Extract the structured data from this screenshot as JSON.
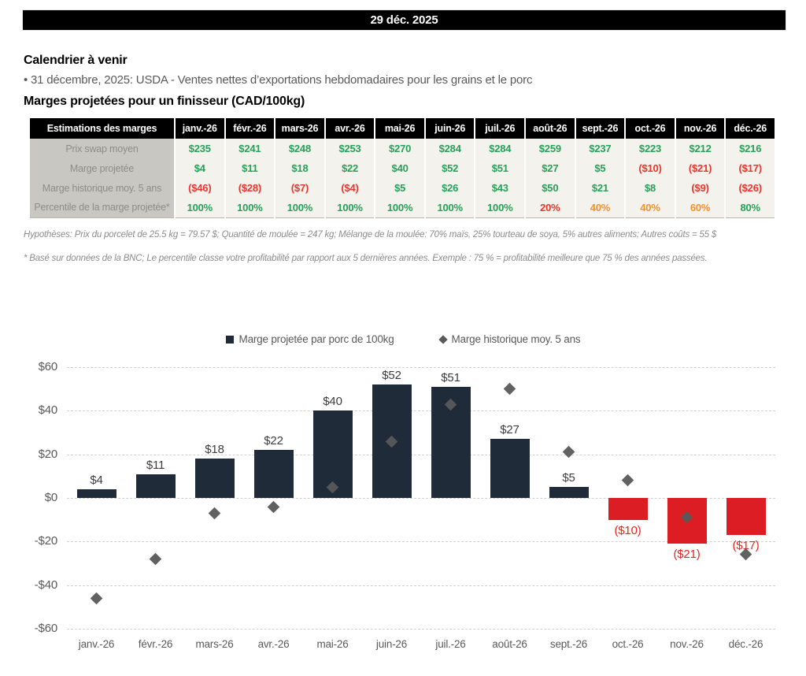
{
  "header": {
    "date": "29 déc. 2025"
  },
  "calendar": {
    "title": "Calendrier à venir",
    "items": [
      "• 31 décembre, 2025: USDA - Ventes nettes d’exportations hebdomadaires pour les grains et le porc"
    ]
  },
  "margins_section": {
    "title": "Marges projetées pour un finisseur (CAD/100kg)"
  },
  "table": {
    "header_label": "Estimations des marges",
    "months": [
      "janv.-26",
      "févr.-26",
      "mars-26",
      "avr.-26",
      "mai-26",
      "juin-26",
      "juil.-26",
      "août-26",
      "sept.-26",
      "oct.-26",
      "nov.-26",
      "déc.-26"
    ],
    "rows": [
      {
        "label": "Prix swap moyen",
        "values": [
          "$235",
          "$241",
          "$248",
          "$253",
          "$270",
          "$284",
          "$284",
          "$259",
          "$237",
          "$223",
          "$212",
          "$216"
        ],
        "colors": [
          "green",
          "green",
          "green",
          "green",
          "green",
          "green",
          "green",
          "green",
          "green",
          "green",
          "green",
          "green"
        ]
      },
      {
        "label": "Marge projetée",
        "values": [
          "$4",
          "$11",
          "$18",
          "$22",
          "$40",
          "$52",
          "$51",
          "$27",
          "$5",
          "($10)",
          "($21)",
          "($17)"
        ],
        "colors": [
          "green",
          "green",
          "green",
          "green",
          "green",
          "green",
          "green",
          "green",
          "green",
          "red",
          "red",
          "red"
        ]
      },
      {
        "label": "Marge historique moy. 5 ans",
        "values": [
          "($46)",
          "($28)",
          "($7)",
          "($4)",
          "$5",
          "$26",
          "$43",
          "$50",
          "$21",
          "$8",
          "($9)",
          "($26)"
        ],
        "colors": [
          "red",
          "red",
          "red",
          "red",
          "green",
          "green",
          "green",
          "green",
          "green",
          "green",
          "red",
          "red"
        ]
      },
      {
        "label": "Percentile de la marge projetée*",
        "values": [
          "100%",
          "100%",
          "100%",
          "100%",
          "100%",
          "100%",
          "100%",
          "20%",
          "40%",
          "40%",
          "60%",
          "80%"
        ],
        "colors": [
          "green",
          "green",
          "green",
          "green",
          "green",
          "green",
          "green",
          "red",
          "orange",
          "orange",
          "orange",
          "green"
        ]
      }
    ]
  },
  "notes": [
    "Hypothèses: Prix du porcelet de 25.5 kg = 79.57 $; Quantité de moulée = 247 kg; Mélange de la moulée: 70% maïs, 25% tourteau de soya, 5% autres aliments; Autres coûts = 55 $",
    "* Basé sur données de la BNC; Le percentile classe votre profitabilité par rapport aux 5 dernières années. Exemple : 75 % = profitabilité meilleure que 75 % des années passées."
  ],
  "chart_data": {
    "type": "bar",
    "categories": [
      "janv.-26",
      "févr.-26",
      "mars-26",
      "avr.-26",
      "mai-26",
      "juin-26",
      "juil.-26",
      "août-26",
      "sept.-26",
      "oct.-26",
      "nov.-26",
      "déc.-26"
    ],
    "series": [
      {
        "name": "Marge projetée par porc de 100kg",
        "type": "bar",
        "values": [
          4,
          11,
          18,
          22,
          40,
          52,
          51,
          27,
          5,
          -10,
          -21,
          -17
        ],
        "labels": [
          "$4",
          "$11",
          "$18",
          "$22",
          "$40",
          "$52",
          "$51",
          "$27",
          "$5",
          "($10)",
          "($21)",
          "($17)"
        ]
      },
      {
        "name": "Marge historique moy. 5 ans",
        "type": "scatter",
        "values": [
          -46,
          -28,
          -7,
          -4,
          5,
          26,
          43,
          50,
          21,
          8,
          -9,
          -26
        ]
      }
    ],
    "ylim": [
      -60,
      60
    ],
    "ytick_values": [
      60,
      40,
      20,
      0,
      -20,
      -40,
      -60
    ],
    "ytick_labels": [
      "$60",
      "$40",
      "$20",
      "$0",
      "-$20",
      "-$40",
      "-$60"
    ],
    "grid": "dashed-horizontal",
    "legend_position": "top",
    "colors": {
      "bar_positive": "#1f2b38",
      "bar_negative": "#dd1d24",
      "marker": "#595959"
    }
  }
}
